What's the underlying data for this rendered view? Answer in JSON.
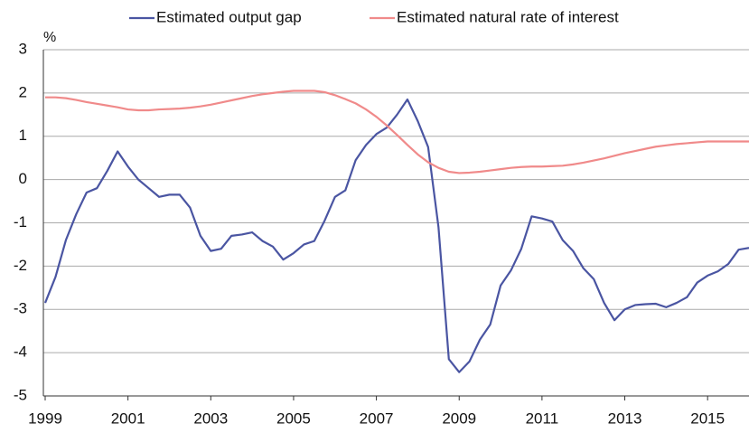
{
  "chart_data": {
    "type": "line",
    "y_label": "%",
    "x": [
      1999,
      1999.25,
      1999.5,
      1999.75,
      2000,
      2000.25,
      2000.5,
      2000.75,
      2001,
      2001.25,
      2001.5,
      2001.75,
      2002,
      2002.25,
      2002.5,
      2002.75,
      2003,
      2003.25,
      2003.5,
      2003.75,
      2004,
      2004.25,
      2004.5,
      2004.75,
      2005,
      2005.25,
      2005.5,
      2005.75,
      2006,
      2006.25,
      2006.5,
      2006.75,
      2007,
      2007.25,
      2007.5,
      2007.75,
      2008,
      2008.25,
      2008.5,
      2008.75,
      2009,
      2009.25,
      2009.5,
      2009.75,
      2010,
      2010.25,
      2010.5,
      2010.75,
      2011,
      2011.25,
      2011.5,
      2011.75,
      2012,
      2012.25,
      2012.5,
      2012.75,
      2013,
      2013.25,
      2013.5,
      2013.75,
      2014,
      2014.25,
      2014.5,
      2014.75,
      2015,
      2015.25,
      2015.5,
      2015.75,
      2016
    ],
    "series": [
      {
        "name": "Estimated output gap",
        "color": "#4a55a2",
        "values": [
          -2.85,
          -2.25,
          -1.4,
          -0.8,
          -0.3,
          -0.2,
          0.2,
          0.65,
          0.3,
          0.0,
          -0.2,
          -0.4,
          -0.35,
          -0.35,
          -0.65,
          -1.3,
          -1.65,
          -1.6,
          -1.3,
          -1.27,
          -1.22,
          -1.42,
          -1.55,
          -1.85,
          -1.7,
          -1.5,
          -1.42,
          -0.95,
          -0.4,
          -0.25,
          0.45,
          0.8,
          1.05,
          1.2,
          1.5,
          1.85,
          1.35,
          0.75,
          -1.1,
          -4.15,
          -4.45,
          -4.2,
          -3.7,
          -3.35,
          -2.45,
          -2.1,
          -1.6,
          -0.85,
          -0.9,
          -0.97,
          -1.4,
          -1.65,
          -2.05,
          -2.3,
          -2.85,
          -3.25,
          -3.0,
          -2.9,
          -2.88,
          -2.87,
          -2.95,
          -2.85,
          -2.72,
          -2.38,
          -2.22,
          -2.12,
          -1.95,
          -1.62,
          -1.58
        ]
      },
      {
        "name": "Estimated natural rate of interest",
        "color": "#f08a8a",
        "values": [
          1.9,
          1.9,
          1.88,
          1.84,
          1.79,
          1.75,
          1.71,
          1.67,
          1.62,
          1.6,
          1.6,
          1.62,
          1.63,
          1.64,
          1.66,
          1.69,
          1.73,
          1.78,
          1.83,
          1.88,
          1.93,
          1.97,
          2.0,
          2.03,
          2.05,
          2.05,
          2.05,
          2.02,
          1.95,
          1.86,
          1.76,
          1.62,
          1.45,
          1.25,
          1.03,
          0.8,
          0.58,
          0.4,
          0.27,
          0.18,
          0.15,
          0.16,
          0.18,
          0.21,
          0.24,
          0.27,
          0.29,
          0.3,
          0.3,
          0.31,
          0.32,
          0.35,
          0.39,
          0.44,
          0.49,
          0.55,
          0.61,
          0.66,
          0.71,
          0.76,
          0.79,
          0.82,
          0.84,
          0.86,
          0.88,
          0.88,
          0.88,
          0.88,
          0.88
        ]
      }
    ],
    "xlim": [
      1999,
      2016
    ],
    "xticks": [
      1999,
      2001,
      2003,
      2005,
      2007,
      2009,
      2011,
      2013,
      2015
    ],
    "ylim": [
      -5,
      3
    ],
    "yticks": [
      -5,
      -4,
      -3,
      -2,
      -1,
      0,
      1,
      2,
      3
    ],
    "grid": true,
    "legend": "top"
  }
}
